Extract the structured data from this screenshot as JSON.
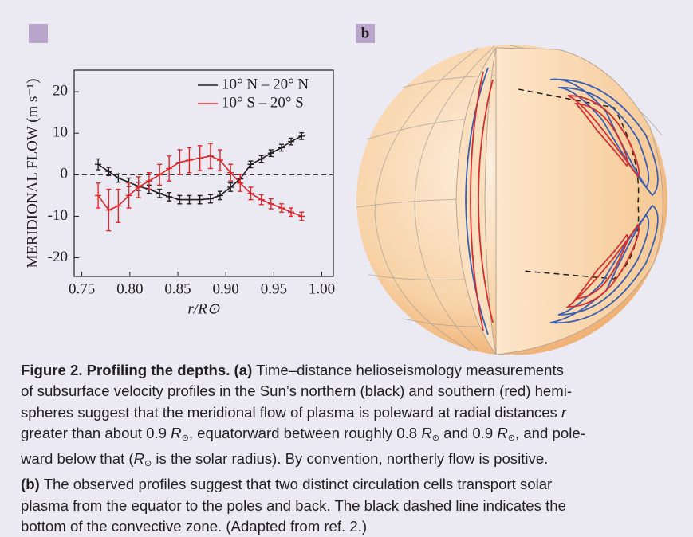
{
  "chart_data": {
    "type": "line",
    "ylabel": "MERIDIONAL FLOW (m s⁻¹)",
    "xlabel": "r/R⊙",
    "x": [
      0.767,
      0.778,
      0.788,
      0.799,
      0.809,
      0.82,
      0.831,
      0.841,
      0.852,
      0.862,
      0.873,
      0.884,
      0.894,
      0.905,
      0.915,
      0.926,
      0.937,
      0.947,
      0.958,
      0.968,
      0.979
    ],
    "series": [
      {
        "name": "10° N – 20° N",
        "color": "#231f20",
        "values": [
          2.5,
          0.8,
          -0.8,
          -1.8,
          -2.8,
          -3.5,
          -4.5,
          -5.3,
          -6,
          -6,
          -6,
          -5.8,
          -5,
          -3,
          -1,
          2.5,
          3.8,
          5.2,
          6.5,
          8,
          9.3
        ],
        "errors": [
          1.3,
          1,
          1,
          1,
          1,
          1,
          1,
          1,
          1,
          1,
          1,
          1,
          1,
          1,
          1,
          0.8,
          0.8,
          0.8,
          0.8,
          0.8,
          0.8
        ]
      },
      {
        "name": "10° S – 20° S",
        "color": "#e0262b",
        "values": [
          -5,
          -8.5,
          -7.5,
          -5,
          -3,
          -1.5,
          0,
          1.5,
          3,
          3.5,
          4,
          4.5,
          3.5,
          0.5,
          -2,
          -4.5,
          -6,
          -7,
          -8,
          -9,
          -10
        ],
        "errors": [
          3,
          5,
          4,
          3,
          2.5,
          2,
          2.5,
          3,
          3,
          3,
          3,
          3,
          2.5,
          2,
          2,
          1.5,
          1.2,
          1.2,
          1,
          1,
          1
        ]
      }
    ],
    "hline": 0,
    "xlim": [
      0.742,
      1.012
    ],
    "ylim": [
      -24.5,
      25.2
    ],
    "xticks": [
      0.75,
      {
        "value": 0.8,
        "label": "0.80"
      },
      0.85,
      {
        "value": 0.9,
        "label": "0.90"
      },
      0.95,
      {
        "value": 1.0,
        "label": "1.00"
      }
    ],
    "yticks": [
      -20,
      -10,
      0,
      10,
      20
    ],
    "legend": "upper right"
  },
  "panel_b": {
    "label": "b"
  },
  "caption": {
    "lines": [
      [
        {
          "text": "Figure 2. Profiling the depths. (a)",
          "style": "bold"
        },
        {
          "text": " Time–distance helioseismology measurements"
        }
      ],
      [
        {
          "text": "of subsurface velocity profiles in the Sun’s northern (black) and southern (red) hemi-"
        }
      ],
      [
        {
          "text": "spheres suggest that the meridional flow of plasma is poleward at radial distances "
        },
        {
          "text": "r",
          "style": "italic"
        }
      ],
      [
        {
          "text": "greater than about 0.9 "
        },
        {
          "text": "R",
          "style": "italic"
        },
        {
          "text": "⊙",
          "style": "sub"
        },
        {
          "text": ", equatorward between roughly 0.8 "
        },
        {
          "text": "R",
          "style": "italic"
        },
        {
          "text": "⊙",
          "style": "sub"
        },
        {
          "text": " and 0.9 "
        },
        {
          "text": "R",
          "style": "italic"
        },
        {
          "text": "⊙",
          "style": "sub"
        },
        {
          "text": ", and pole-"
        }
      ],
      [
        {
          "text": "ward below that ("
        },
        {
          "text": "R",
          "style": "italic"
        },
        {
          "text": "⊙",
          "style": "sub"
        },
        {
          "text": " is the solar radius). By convention, northerly flow is positive."
        }
      ],
      [
        {
          "text": "(b)",
          "style": "bold"
        },
        {
          "text": " The observed profiles suggest that two distinct circulation cells transport solar"
        }
      ],
      [
        {
          "text": "plasma from the equator to the poles and back. The black dashed line indicates the"
        }
      ],
      [
        {
          "text": "bottom of the convective zone. (Adapted from ref. 2.)"
        }
      ]
    ]
  }
}
